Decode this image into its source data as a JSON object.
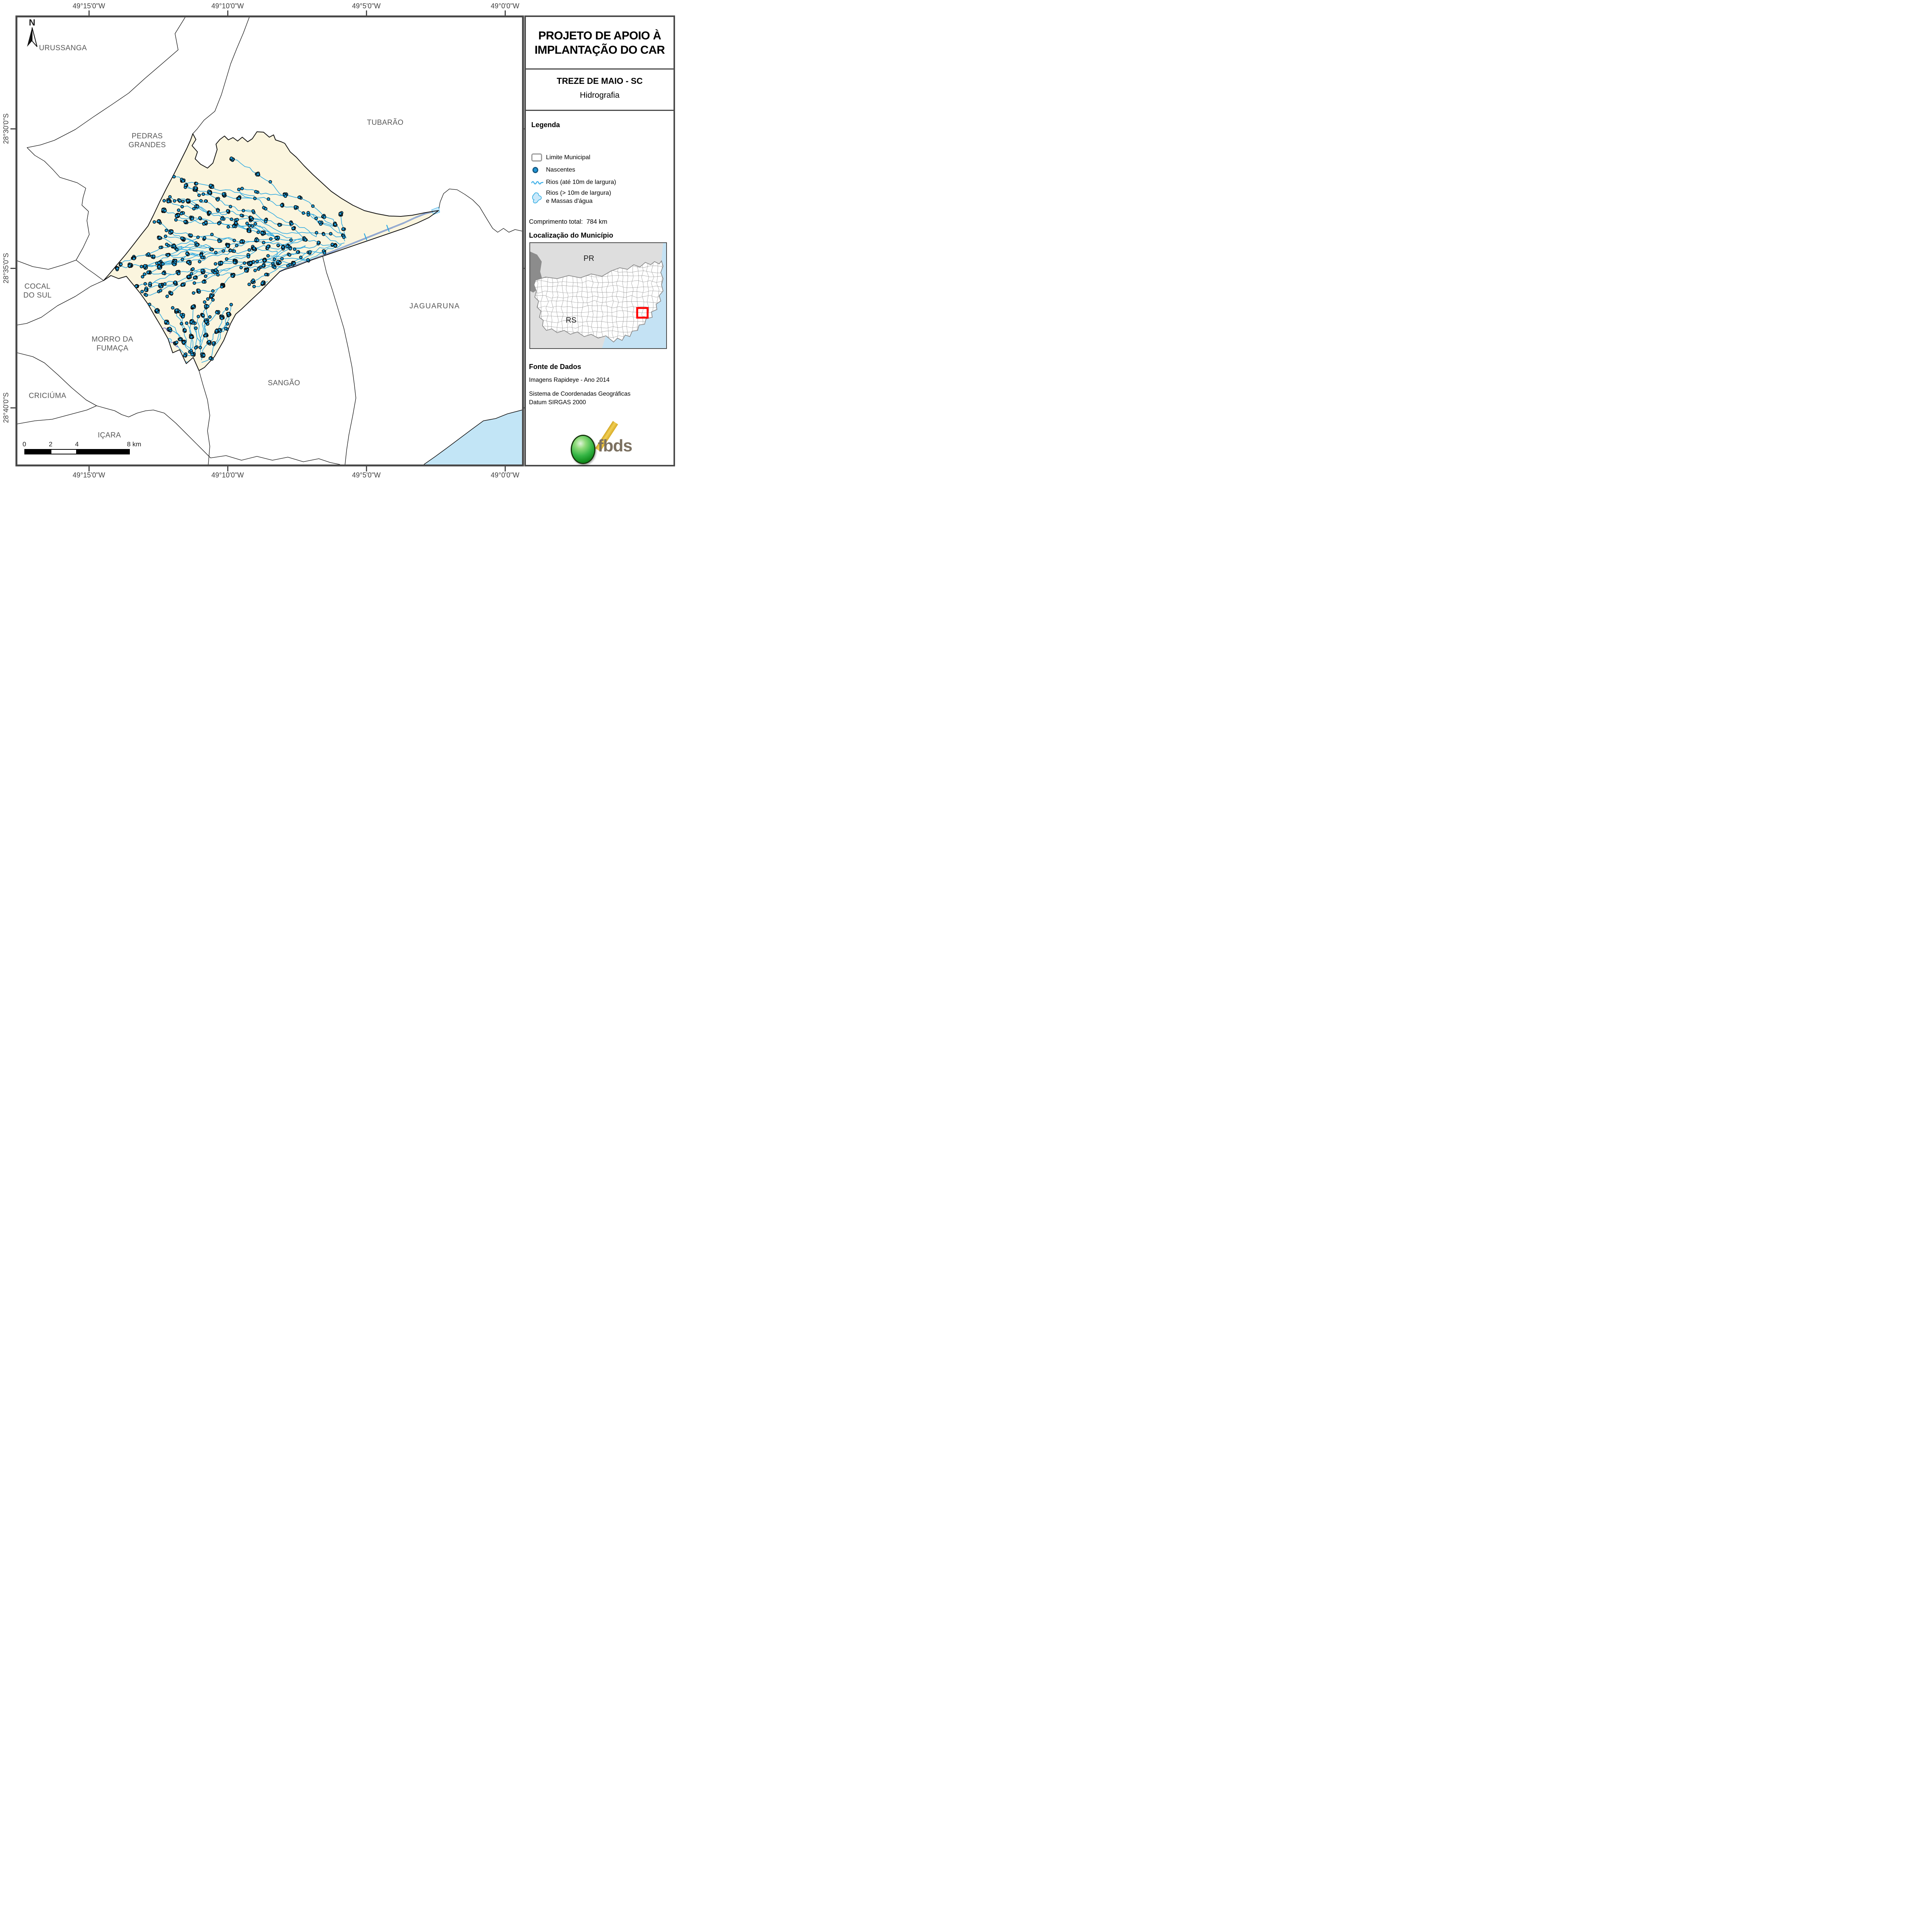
{
  "panel": {
    "title_line1": "PROJETO DE APOIO À",
    "title_line2": "IMPLANTAÇÃO DO CAR",
    "municipality": "TREZE DE MAIO - SC",
    "theme": "Hidrografia",
    "legend": {
      "header": "Legenda",
      "item_limite": "Limite Municipal",
      "item_nascentes": "Nascentes",
      "item_rios": "Rios (até 10m de largura)",
      "item_massas_line1": "Rios (> 10m de largura)",
      "item_massas_line2": "e Massas d'água"
    },
    "total_length_label": "Comprimento total:",
    "total_length_value": "784 km",
    "location_header": "Localização do Município",
    "inset": {
      "label_pr": "PR",
      "label_rs": "RS"
    },
    "source_header": "Fonte de Dados",
    "source_line1": "Imagens Rapideye - Ano 2014",
    "source_line2": "Sistema de Coordenadas Geográficas",
    "source_line3": "Datum SIRGAS 2000",
    "logo_text": "fbds"
  },
  "map": {
    "north_label": "N",
    "labels": {
      "urussanga": "URUSSANGA",
      "pedras_line1": "PEDRAS",
      "pedras_line2": "GRANDES",
      "tubarao": "TUBARÃO",
      "cocal_line1": "COCAL",
      "cocal_line2": "DO SUL",
      "morro_line1": "MORRO DA",
      "morro_line2": "FUMAÇA",
      "criciuma": "CRICIÚMA",
      "sangao": "SANGÃO",
      "jaguaruna": "JAGUARUNA",
      "icara": "IÇARA"
    },
    "coords_top": [
      "49°15'0\"W",
      "49°10'0\"W",
      "49°5'0\"W",
      "49°0'0\"W"
    ],
    "coords_bottom": [
      "49°15'0\"W",
      "49°10'0\"W",
      "49°5'0\"W",
      "49°0'0\"W"
    ],
    "coords_left": [
      "28°30'0\"S",
      "28°35'0\"S",
      "28°40'0\"S"
    ],
    "scale_ticks": [
      "0",
      "2",
      "4",
      "8 km"
    ],
    "colors": {
      "frame": "#4a4a4a",
      "municipality_fill": "#fbf5de",
      "boundary_black": "#111111",
      "river_cyan": "#2da9e1",
      "river_wide": "#3f6cc6",
      "water_light": "#c9e8fa",
      "spring_fill": "#1899d6",
      "spring_stroke": "#0a0a0a",
      "ocean": "#c2e5f6",
      "inset_bg": "#dedede",
      "inset_dark": "#8c8c8c",
      "inset_mesh": "#909090",
      "inset_ocean": "#c4e2f4",
      "marker_red": "#ff0000",
      "label_gray": "#575757"
    },
    "render": {
      "seed": 20140713,
      "river_count": 115,
      "extra_dot_attempts": 1500,
      "dot_radius": 3.7
    }
  }
}
